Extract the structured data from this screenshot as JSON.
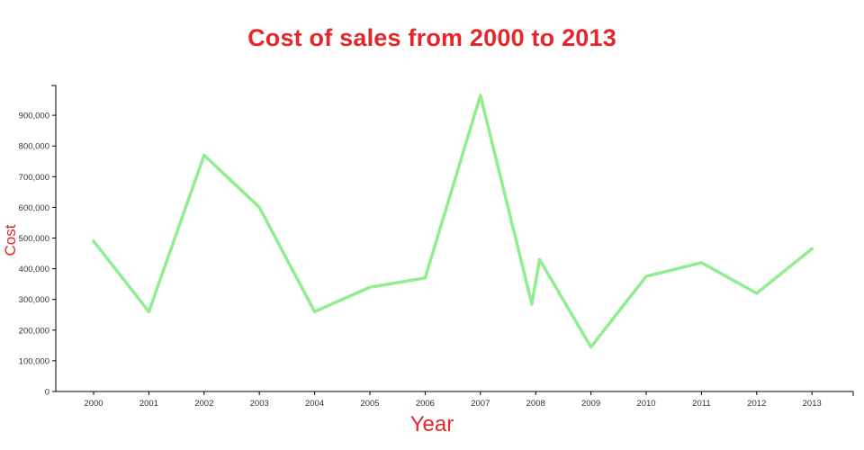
{
  "chart_data": {
    "type": "line",
    "title": "Cost of sales from 2000 to 2013",
    "xlabel": "Year",
    "ylabel": "Cost",
    "x_ticks": [
      2000,
      2001,
      2002,
      2003,
      2004,
      2005,
      2006,
      2007,
      2008,
      2009,
      2010,
      2011,
      2012,
      2013
    ],
    "y_ticks": [
      0,
      100000,
      200000,
      300000,
      400000,
      500000,
      600000,
      700000,
      800000,
      900000
    ],
    "y_tick_labels": [
      "0",
      "100,000",
      "200,000",
      "300,000",
      "400,000",
      "500,000",
      "600,000",
      "700,000",
      "800,000",
      "900,000"
    ],
    "x": [
      2000,
      2001,
      2002,
      2003,
      2004,
      2005,
      2006,
      2007,
      2007.93,
      2008.07,
      2009,
      2010,
      2011,
      2012,
      2013
    ],
    "y": [
      490000,
      260000,
      770000,
      600000,
      260000,
      340000,
      370000,
      965000,
      285000,
      430000,
      145000,
      375000,
      420000,
      320000,
      465000
    ],
    "ylim": [
      0,
      1000000
    ],
    "grid": false,
    "legend": "none",
    "line_color": "#90ee90",
    "title_color": "#e5262b",
    "axis_color": "#000000",
    "tick_label_color": "#333333"
  }
}
